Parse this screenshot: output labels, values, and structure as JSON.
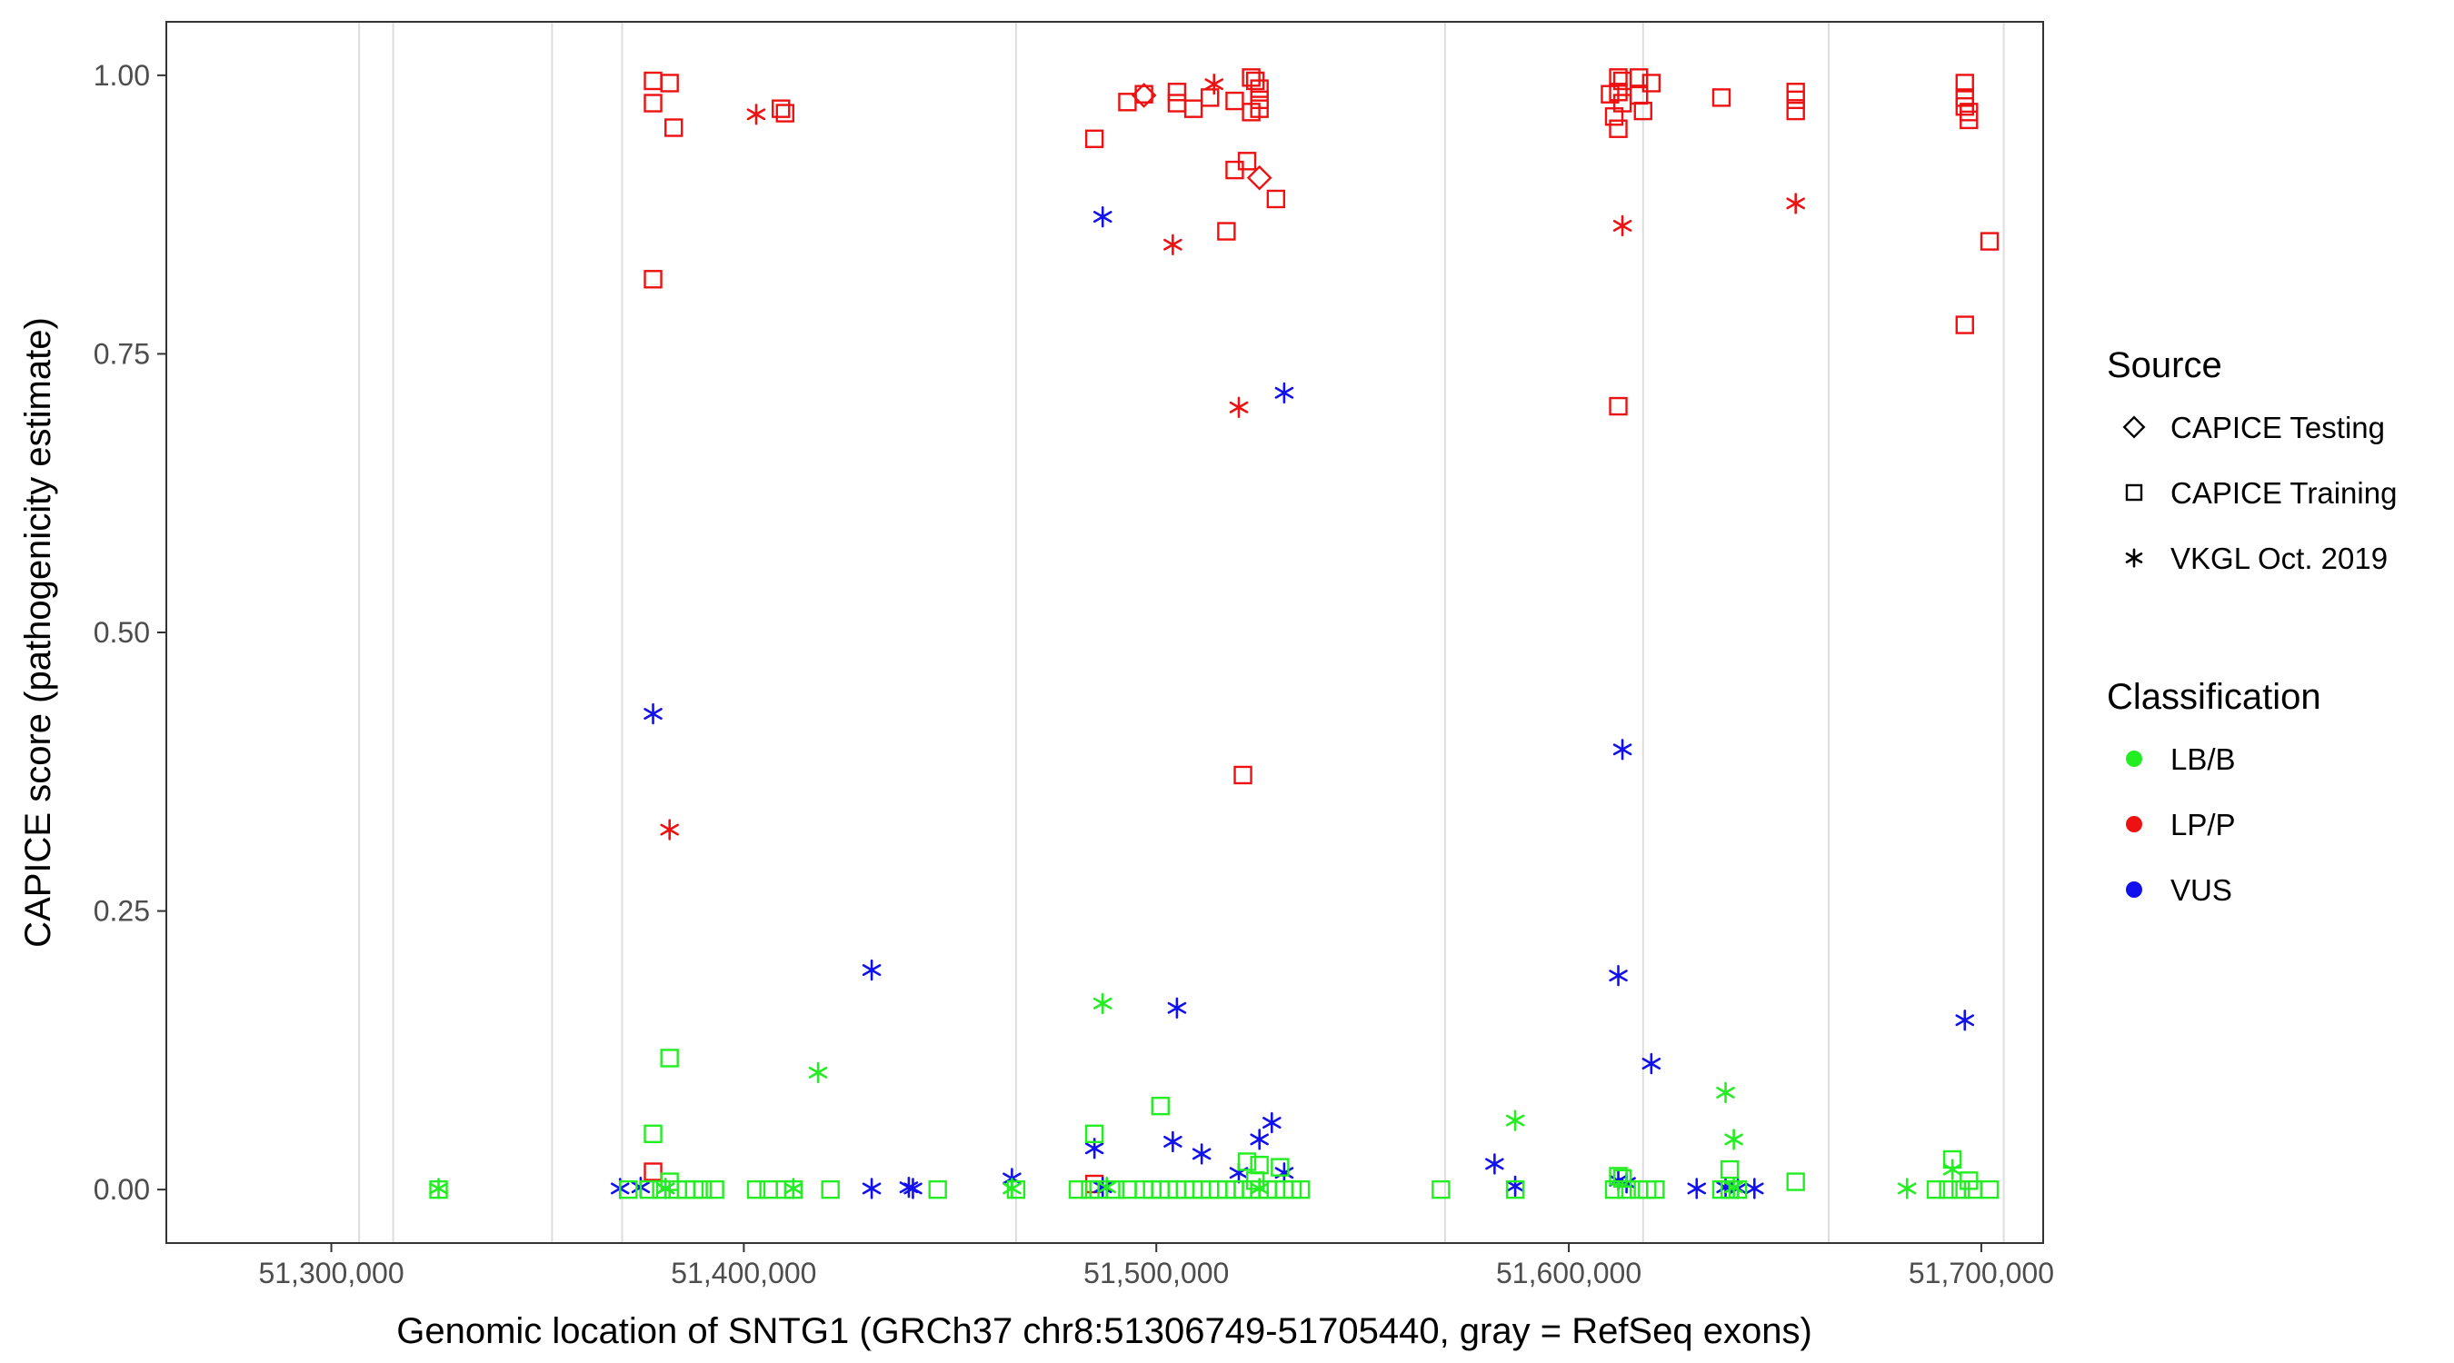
{
  "chart_data": {
    "type": "scatter",
    "title": "",
    "xlabel": "Genomic location of SNTG1 (GRCh37 chr8:51306749-51705440, gray = RefSeq exons)",
    "ylabel": "CAPICE score (pathogenicity estimate)",
    "xlim": [
      51260000,
      51715000
    ],
    "ylim": [
      -0.048,
      1.048
    ],
    "xticks": [
      51300000,
      51400000,
      51500000,
      51600000,
      51700000
    ],
    "xtick_labels": [
      "51,300,000",
      "51,400,000",
      "51,500,000",
      "51,600,000",
      "51,700,000"
    ],
    "yticks": [
      0,
      0.25,
      0.5,
      0.75,
      1.0
    ],
    "ytick_labels": [
      "0.00",
      "0.25",
      "0.50",
      "0.75",
      "1.00"
    ],
    "exons": [
      51306749,
      51315000,
      51353500,
      51370500,
      51466000,
      51570000,
      51618000,
      51663000,
      51705440
    ],
    "colors": {
      "LB/B": "#22ee22",
      "LP/P": "#ee1111",
      "VUS": "#1111ee",
      "gridline": "#dddddd",
      "frame": "#333333"
    },
    "legend_source": {
      "title": "Source",
      "items": [
        {
          "label": "CAPICE Testing",
          "shape": "diamond"
        },
        {
          "label": "CAPICE Training",
          "shape": "square"
        },
        {
          "label": "VKGL Oct. 2019",
          "shape": "asterisk"
        }
      ]
    },
    "legend_class": {
      "title": "Classification",
      "items": [
        {
          "label": "LB/B",
          "color": "#22ee22"
        },
        {
          "label": "LP/P",
          "color": "#ee1111"
        },
        {
          "label": "VUS",
          "color": "#1111ee"
        }
      ]
    },
    "series": [
      {
        "name": "LP/P — CAPICE Training",
        "class": "LP/P",
        "shape": "square",
        "points": [
          [
            51378000,
            0.995
          ],
          [
            51382000,
            0.993
          ],
          [
            51378000,
            0.975
          ],
          [
            51383000,
            0.953
          ],
          [
            51378000,
            0.817
          ],
          [
            51409000,
            0.97
          ],
          [
            51410000,
            0.966
          ],
          [
            51485000,
            0.943
          ],
          [
            51493000,
            0.976
          ],
          [
            51497000,
            0.983
          ],
          [
            51505000,
            0.985
          ],
          [
            51505000,
            0.975
          ],
          [
            51509000,
            0.97
          ],
          [
            51513000,
            0.98
          ],
          [
            51517000,
            0.86
          ],
          [
            51519000,
            0.977
          ],
          [
            51519000,
            0.915
          ],
          [
            51522000,
            0.923
          ],
          [
            51523000,
            0.998
          ],
          [
            51524000,
            0.995
          ],
          [
            51525000,
            0.988
          ],
          [
            51525000,
            0.978
          ],
          [
            51523000,
            0.967
          ],
          [
            51525000,
            0.97
          ],
          [
            51529000,
            0.889
          ],
          [
            51521000,
            0.372
          ],
          [
            51378000,
            0.016
          ],
          [
            51610000,
            0.983
          ],
          [
            51611000,
            0.963
          ],
          [
            51612000,
            0.998
          ],
          [
            51613000,
            0.995
          ],
          [
            51612000,
            0.985
          ],
          [
            51613000,
            0.975
          ],
          [
            51612000,
            0.952
          ],
          [
            51617000,
            0.998
          ],
          [
            51620000,
            0.993
          ],
          [
            51617000,
            0.982
          ],
          [
            51618000,
            0.968
          ],
          [
            51612000,
            0.703
          ],
          [
            51637000,
            0.98
          ],
          [
            51655000,
            0.985
          ],
          [
            51655000,
            0.978
          ],
          [
            51655000,
            0.968
          ],
          [
            51696000,
            0.993
          ],
          [
            51696000,
            0.98
          ],
          [
            51696000,
            0.972
          ],
          [
            51697000,
            0.967
          ],
          [
            51697000,
            0.96
          ],
          [
            51702000,
            0.851
          ],
          [
            51696000,
            0.776
          ],
          [
            51485000,
            0.005
          ]
        ]
      },
      {
        "name": "LP/P — CAPICE Testing",
        "class": "LP/P",
        "shape": "diamond",
        "points": [
          [
            51497000,
            0.982
          ],
          [
            51525000,
            0.908
          ]
        ]
      },
      {
        "name": "LP/P — VKGL Oct. 2019",
        "class": "LP/P",
        "shape": "asterisk",
        "points": [
          [
            51403000,
            0.965
          ],
          [
            51514000,
            0.992
          ],
          [
            51504000,
            0.848
          ],
          [
            51520000,
            0.702
          ],
          [
            51382000,
            0.323
          ],
          [
            51613000,
            0.865
          ],
          [
            51655000,
            0.885
          ]
        ]
      },
      {
        "name": "VUS — VKGL Oct. 2019",
        "class": "VUS",
        "shape": "asterisk",
        "points": [
          [
            51487000,
            0.873
          ],
          [
            51531000,
            0.715
          ],
          [
            51378000,
            0.427
          ],
          [
            51431000,
            0.197
          ],
          [
            51505000,
            0.163
          ],
          [
            51528000,
            0.06
          ],
          [
            51504000,
            0.043
          ],
          [
            51525000,
            0.045
          ],
          [
            51511000,
            0.032
          ],
          [
            51485000,
            0.037
          ],
          [
            51520000,
            0.015
          ],
          [
            51531000,
            0.015
          ],
          [
            51465000,
            0.01
          ],
          [
            51370000,
            0.001
          ],
          [
            51375000,
            0.002
          ],
          [
            51381000,
            0.001
          ],
          [
            51431000,
            0.001
          ],
          [
            51440000,
            0.002
          ],
          [
            51441000,
            0.001
          ],
          [
            51487000,
            0.002
          ],
          [
            51613000,
            0.395
          ],
          [
            51612000,
            0.192
          ],
          [
            51620000,
            0.113
          ],
          [
            51582000,
            0.023
          ],
          [
            51587000,
            0.003
          ],
          [
            51612000,
            0.008
          ],
          [
            51614000,
            0.006
          ],
          [
            51631000,
            0.001
          ],
          [
            51638000,
            0.002
          ],
          [
            51641000,
            0.001
          ],
          [
            51645000,
            0.001
          ],
          [
            51696000,
            0.152
          ]
        ]
      },
      {
        "name": "LB/B — VKGL Oct. 2019",
        "class": "LB/B",
        "shape": "asterisk",
        "points": [
          [
            51487000,
            0.167
          ],
          [
            51418000,
            0.105
          ],
          [
            51587000,
            0.062
          ],
          [
            51638000,
            0.087
          ],
          [
            51640000,
            0.045
          ],
          [
            51693000,
            0.018
          ],
          [
            51326000,
            0.001
          ],
          [
            51381000,
            0.001
          ],
          [
            51412000,
            0.001
          ],
          [
            51465000,
            0.001
          ],
          [
            51488000,
            0.002
          ],
          [
            51525000,
            0.001
          ],
          [
            51640000,
            0.002
          ],
          [
            51682000,
            0.001
          ]
        ]
      },
      {
        "name": "LB/B — CAPICE Training",
        "class": "LB/B",
        "shape": "square",
        "points": [
          [
            51382000,
            0.118
          ],
          [
            51378000,
            0.05
          ],
          [
            51485000,
            0.05
          ],
          [
            51501000,
            0.075
          ],
          [
            51522000,
            0.025
          ],
          [
            51525000,
            0.022
          ],
          [
            51530000,
            0.02
          ],
          [
            51382000,
            0.007
          ],
          [
            51524000,
            0.008
          ],
          [
            51612000,
            0.012
          ],
          [
            51613000,
            0.01
          ],
          [
            51639000,
            0.018
          ],
          [
            51655000,
            0.007
          ],
          [
            51693000,
            0.027
          ],
          [
            51697000,
            0.008
          ],
          [
            51326000,
            0.0
          ],
          [
            51372000,
            0.0
          ],
          [
            51377000,
            0.0
          ],
          [
            51380000,
            0.0
          ],
          [
            51384000,
            0.0
          ],
          [
            51386000,
            0.0
          ],
          [
            51388000,
            0.0
          ],
          [
            51390000,
            0.0
          ],
          [
            51393000,
            0.0
          ],
          [
            51403000,
            0.0
          ],
          [
            51406000,
            0.0
          ],
          [
            51410000,
            0.0
          ],
          [
            51412000,
            0.0
          ],
          [
            51421000,
            0.0
          ],
          [
            51447000,
            0.0
          ],
          [
            51466000,
            0.0
          ],
          [
            51481000,
            0.0
          ],
          [
            51484000,
            0.0
          ],
          [
            51486000,
            0.0
          ],
          [
            51490000,
            0.0
          ],
          [
            51493000,
            0.0
          ],
          [
            51497000,
            0.0
          ],
          [
            51499000,
            0.0
          ],
          [
            51501000,
            0.0
          ],
          [
            51503000,
            0.0
          ],
          [
            51505000,
            0.0
          ],
          [
            51507000,
            0.0
          ],
          [
            51509000,
            0.0
          ],
          [
            51511000,
            0.0
          ],
          [
            51513000,
            0.0
          ],
          [
            51515000,
            0.0
          ],
          [
            51517000,
            0.0
          ],
          [
            51519000,
            0.0
          ],
          [
            51521000,
            0.0
          ],
          [
            51523000,
            0.0
          ],
          [
            51525000,
            0.0
          ],
          [
            51527000,
            0.0
          ],
          [
            51529000,
            0.0
          ],
          [
            51531000,
            0.0
          ],
          [
            51533000,
            0.0
          ],
          [
            51535000,
            0.0
          ],
          [
            51569000,
            0.0
          ],
          [
            51587000,
            0.0
          ],
          [
            51611000,
            0.0
          ],
          [
            51614000,
            0.0
          ],
          [
            51617000,
            0.0
          ],
          [
            51619000,
            0.0
          ],
          [
            51621000,
            0.0
          ],
          [
            51637000,
            0.0
          ],
          [
            51639000,
            0.0
          ],
          [
            51641000,
            0.0
          ],
          [
            51689000,
            0.0
          ],
          [
            51692000,
            0.0
          ],
          [
            51695000,
            0.0
          ],
          [
            51698000,
            0.0
          ],
          [
            51702000,
            0.0
          ]
        ]
      }
    ]
  }
}
